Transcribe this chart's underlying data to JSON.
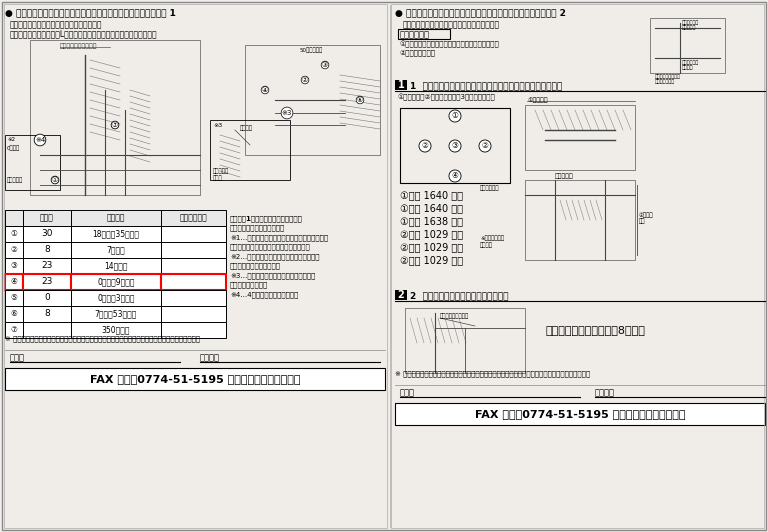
{
  "bg_color": "#f0ede8",
  "border_color": "#888888",
  "left_panel": {
    "title": "● エコ引き違い雨戸用既存サッシ枠（半外付用）寸法記入シート 1",
    "bullets": [
      "・本商品は半外付け引違いサッシ専用です。",
      "・入り隅サッシの片側がL字の場合は取付スペースに注意して下さい。"
    ],
    "table_rows": [
      {
        "num": "①",
        "val": "30",
        "spec": "18㎜以上35㎜以下",
        "ok": ""
      },
      {
        "num": "②",
        "val": "8",
        "spec": "7㎜以上",
        "ok": ""
      },
      {
        "num": "③",
        "val": "23",
        "spec": "14㎜以上",
        "ok": ""
      },
      {
        "num": "④",
        "val": "23",
        "spec": "0㎜以上9㎜以下",
        "ok": "",
        "highlight": true
      },
      {
        "num": "⑤",
        "val": "0",
        "spec": "0㎜以上3㎜以下",
        "ok": ""
      },
      {
        "num": "⑥",
        "val": "8",
        "spec": "7㎜以上53㎜以下",
        "ok": ""
      },
      {
        "num": "⑦",
        "val": "",
        "spec": "350㎜以上",
        "ok": ""
      }
    ],
    "table_headers": [
      "",
      "実測値",
      "規定寸法",
      "適合・不適合"
    ],
    "notes_right": [
      "左記表に1つでも不適合がある場合は",
      "本商品を取付けできません。",
      "※1…下枠の雨戸レールの内から出しが、たて枠",
      "　より内側にある場合は取付できません。",
      "※2…下枠の先端が雨戸レールより出ている",
      "　場合は取付できません。",
      "※3…左たて枠、戸当り部品がある場合は",
      "　取付できません。",
      "※4…4枚建の場合に必要です。"
    ],
    "footer_note": "※ 寸法は、スチール製（ステンレス製）メジャーで測ってください。（手巻用はやめてください。）",
    "name_label": "お名前",
    "order_label": "注文番号",
    "fax_line": "FAX 番号：0774-51-5195 にそのまま送信ください"
  },
  "right_panel": {
    "title": "● エコ引き違い雨戸用既存サッシ枠（半外付用）寸法記入シート 2",
    "intro": "今お使いのサッシの各種寸法を測りましょう。",
    "section_box": "計測ポイント",
    "section_items": [
      "①サッシ枠の雨戸レールの内の幅と内のり高さ寸法",
      "②サッシ枠の出幅"
    ],
    "section1_title": "1  サッシ枠の雨戸レールの内のり幅と内のり高さを測ります",
    "section1_sub": "①内のり幅・②内のり高さを各3ヶ所測ります。",
    "measurements": [
      "①上（ 1640 ）㎜",
      "①中（ 1640 ）㎜",
      "①下（ 1638 ）㎜",
      "②左（ 1029 ）㎜",
      "②中（ 1029 ）㎜",
      "②右（ 1029 ）㎜"
    ],
    "section2_title": "2  外壁からサッシ枠の出幅を測ります",
    "sash_width_label": "サッシ枠の出幅寸法（　8　）㎜",
    "footer_note": "※ 寸法は、スチール製（ステンレス製）メジャーで測ってください。（手巻用はやめてください。）",
    "name_label": "お名前",
    "order_label": "注文番号",
    "fax_line": "FAX 番号：0774-51-5195 にそのまま送信ください"
  }
}
